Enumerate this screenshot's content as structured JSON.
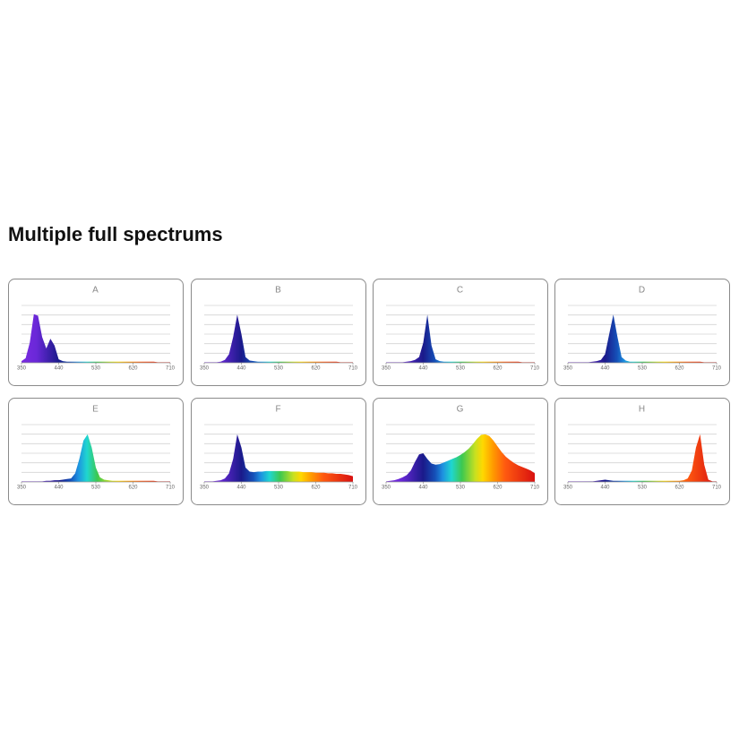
{
  "heading": "Multiple full spectrums",
  "chart_data": [
    {
      "type": "area",
      "title": "A",
      "xlim": [
        350,
        710
      ],
      "xticks": [
        350,
        440,
        530,
        620,
        710
      ],
      "ylim": [
        0,
        1
      ],
      "grid": true,
      "x": [
        350,
        360,
        370,
        380,
        390,
        400,
        410,
        420,
        430,
        440,
        450,
        460,
        470,
        480,
        490,
        500,
        510,
        520,
        530,
        540,
        550,
        560,
        570,
        580,
        590,
        600,
        610,
        620,
        630,
        640,
        650,
        660,
        670,
        680,
        690,
        700,
        710
      ],
      "values": [
        0.03,
        0.08,
        0.35,
        0.85,
        0.82,
        0.45,
        0.25,
        0.42,
        0.3,
        0.06,
        0.03,
        0.02,
        0.02,
        0.02,
        0.02,
        0.02,
        0.02,
        0.02,
        0.02,
        0.02,
        0.02,
        0.02,
        0.02,
        0.02,
        0.02,
        0.02,
        0.02,
        0.02,
        0.02,
        0.02,
        0.02,
        0.02,
        0.02,
        0.01,
        0.01,
        0.01,
        0.01
      ]
    },
    {
      "type": "area",
      "title": "B",
      "xlim": [
        350,
        710
      ],
      "xticks": [
        350,
        440,
        530,
        620,
        710
      ],
      "ylim": [
        0,
        1
      ],
      "grid": true,
      "x": [
        350,
        360,
        370,
        380,
        390,
        400,
        410,
        420,
        430,
        440,
        450,
        460,
        470,
        480,
        490,
        500,
        510,
        520,
        530,
        540,
        550,
        560,
        570,
        580,
        590,
        600,
        610,
        620,
        630,
        640,
        650,
        660,
        670,
        680,
        690,
        700,
        710
      ],
      "values": [
        0.01,
        0.01,
        0.01,
        0.01,
        0.02,
        0.05,
        0.15,
        0.45,
        0.84,
        0.5,
        0.1,
        0.04,
        0.03,
        0.02,
        0.02,
        0.02,
        0.02,
        0.02,
        0.02,
        0.02,
        0.02,
        0.02,
        0.02,
        0.02,
        0.02,
        0.02,
        0.02,
        0.02,
        0.02,
        0.02,
        0.02,
        0.02,
        0.02,
        0.01,
        0.01,
        0.01,
        0.01
      ]
    },
    {
      "type": "area",
      "title": "C",
      "xlim": [
        350,
        710
      ],
      "xticks": [
        350,
        440,
        530,
        620,
        710
      ],
      "ylim": [
        0,
        1
      ],
      "grid": true,
      "x": [
        350,
        360,
        370,
        380,
        390,
        400,
        410,
        420,
        430,
        440,
        450,
        460,
        470,
        480,
        490,
        500,
        510,
        520,
        530,
        540,
        550,
        560,
        570,
        580,
        590,
        600,
        610,
        620,
        630,
        640,
        650,
        660,
        670,
        680,
        690,
        700,
        710
      ],
      "values": [
        0.01,
        0.01,
        0.01,
        0.01,
        0.01,
        0.02,
        0.03,
        0.05,
        0.1,
        0.35,
        0.84,
        0.3,
        0.06,
        0.03,
        0.02,
        0.02,
        0.02,
        0.02,
        0.02,
        0.02,
        0.02,
        0.02,
        0.02,
        0.02,
        0.02,
        0.02,
        0.02,
        0.02,
        0.02,
        0.02,
        0.02,
        0.02,
        0.02,
        0.01,
        0.01,
        0.01,
        0.01
      ]
    },
    {
      "type": "area",
      "title": "D",
      "xlim": [
        350,
        710
      ],
      "xticks": [
        350,
        440,
        530,
        620,
        710
      ],
      "ylim": [
        0,
        1
      ],
      "grid": true,
      "x": [
        350,
        360,
        370,
        380,
        390,
        400,
        410,
        420,
        430,
        440,
        450,
        460,
        470,
        480,
        490,
        500,
        510,
        520,
        530,
        540,
        550,
        560,
        570,
        580,
        590,
        600,
        610,
        620,
        630,
        640,
        650,
        660,
        670,
        680,
        690,
        700,
        710
      ],
      "values": [
        0.01,
        0.01,
        0.01,
        0.01,
        0.01,
        0.01,
        0.02,
        0.03,
        0.05,
        0.15,
        0.5,
        0.84,
        0.45,
        0.1,
        0.04,
        0.02,
        0.02,
        0.02,
        0.02,
        0.02,
        0.02,
        0.02,
        0.02,
        0.02,
        0.02,
        0.02,
        0.02,
        0.02,
        0.02,
        0.02,
        0.02,
        0.02,
        0.02,
        0.01,
        0.01,
        0.01,
        0.01
      ]
    },
    {
      "type": "area",
      "title": "E",
      "xlim": [
        350,
        710
      ],
      "xticks": [
        350,
        440,
        530,
        620,
        710
      ],
      "ylim": [
        0,
        1
      ],
      "grid": true,
      "x": [
        350,
        360,
        370,
        380,
        390,
        400,
        410,
        420,
        430,
        440,
        450,
        460,
        470,
        480,
        490,
        500,
        510,
        520,
        530,
        540,
        550,
        560,
        570,
        580,
        590,
        600,
        610,
        620,
        630,
        640,
        650,
        660,
        670,
        680,
        690,
        700,
        710
      ],
      "values": [
        0.01,
        0.01,
        0.01,
        0.01,
        0.01,
        0.01,
        0.02,
        0.02,
        0.03,
        0.03,
        0.04,
        0.05,
        0.06,
        0.15,
        0.4,
        0.72,
        0.83,
        0.6,
        0.25,
        0.08,
        0.04,
        0.03,
        0.02,
        0.02,
        0.02,
        0.02,
        0.02,
        0.02,
        0.02,
        0.02,
        0.02,
        0.02,
        0.02,
        0.01,
        0.01,
        0.01,
        0.01
      ]
    },
    {
      "type": "area",
      "title": "F",
      "xlim": [
        350,
        710
      ],
      "xticks": [
        350,
        440,
        530,
        620,
        710
      ],
      "ylim": [
        0,
        1
      ],
      "grid": true,
      "x": [
        350,
        360,
        370,
        380,
        390,
        400,
        410,
        420,
        430,
        440,
        450,
        460,
        470,
        480,
        490,
        500,
        510,
        520,
        530,
        540,
        550,
        560,
        570,
        580,
        590,
        600,
        610,
        620,
        630,
        640,
        650,
        660,
        670,
        680,
        690,
        700,
        710
      ],
      "values": [
        0.01,
        0.01,
        0.01,
        0.02,
        0.03,
        0.06,
        0.15,
        0.4,
        0.83,
        0.6,
        0.25,
        0.18,
        0.17,
        0.18,
        0.18,
        0.19,
        0.19,
        0.19,
        0.19,
        0.19,
        0.19,
        0.18,
        0.18,
        0.18,
        0.17,
        0.17,
        0.17,
        0.16,
        0.16,
        0.16,
        0.15,
        0.15,
        0.14,
        0.14,
        0.13,
        0.12,
        0.1
      ]
    },
    {
      "type": "area",
      "title": "G",
      "xlim": [
        350,
        710
      ],
      "xticks": [
        350,
        440,
        530,
        620,
        710
      ],
      "ylim": [
        0,
        1
      ],
      "grid": true,
      "x": [
        350,
        360,
        370,
        380,
        390,
        400,
        410,
        420,
        430,
        440,
        450,
        460,
        470,
        480,
        490,
        500,
        510,
        520,
        530,
        540,
        550,
        560,
        570,
        580,
        590,
        600,
        610,
        620,
        630,
        640,
        650,
        660,
        670,
        680,
        690,
        700,
        710
      ],
      "values": [
        0.01,
        0.02,
        0.03,
        0.05,
        0.08,
        0.12,
        0.2,
        0.35,
        0.48,
        0.5,
        0.4,
        0.32,
        0.3,
        0.31,
        0.34,
        0.37,
        0.4,
        0.43,
        0.47,
        0.52,
        0.58,
        0.66,
        0.75,
        0.82,
        0.83,
        0.8,
        0.72,
        0.62,
        0.52,
        0.44,
        0.38,
        0.33,
        0.29,
        0.26,
        0.23,
        0.2,
        0.15
      ]
    },
    {
      "type": "area",
      "title": "H",
      "xlim": [
        350,
        710
      ],
      "xticks": [
        350,
        440,
        530,
        620,
        710
      ],
      "ylim": [
        0,
        1
      ],
      "grid": true,
      "x": [
        350,
        360,
        370,
        380,
        390,
        400,
        410,
        420,
        430,
        440,
        450,
        460,
        470,
        480,
        490,
        500,
        510,
        520,
        530,
        540,
        550,
        560,
        570,
        580,
        590,
        600,
        610,
        620,
        630,
        640,
        650,
        660,
        670,
        680,
        690,
        700,
        710
      ],
      "values": [
        0.01,
        0.01,
        0.01,
        0.01,
        0.01,
        0.01,
        0.01,
        0.02,
        0.03,
        0.04,
        0.03,
        0.02,
        0.02,
        0.02,
        0.02,
        0.02,
        0.02,
        0.02,
        0.02,
        0.02,
        0.02,
        0.02,
        0.02,
        0.02,
        0.02,
        0.02,
        0.02,
        0.02,
        0.03,
        0.06,
        0.2,
        0.6,
        0.83,
        0.3,
        0.04,
        0.01,
        0.01
      ]
    }
  ]
}
